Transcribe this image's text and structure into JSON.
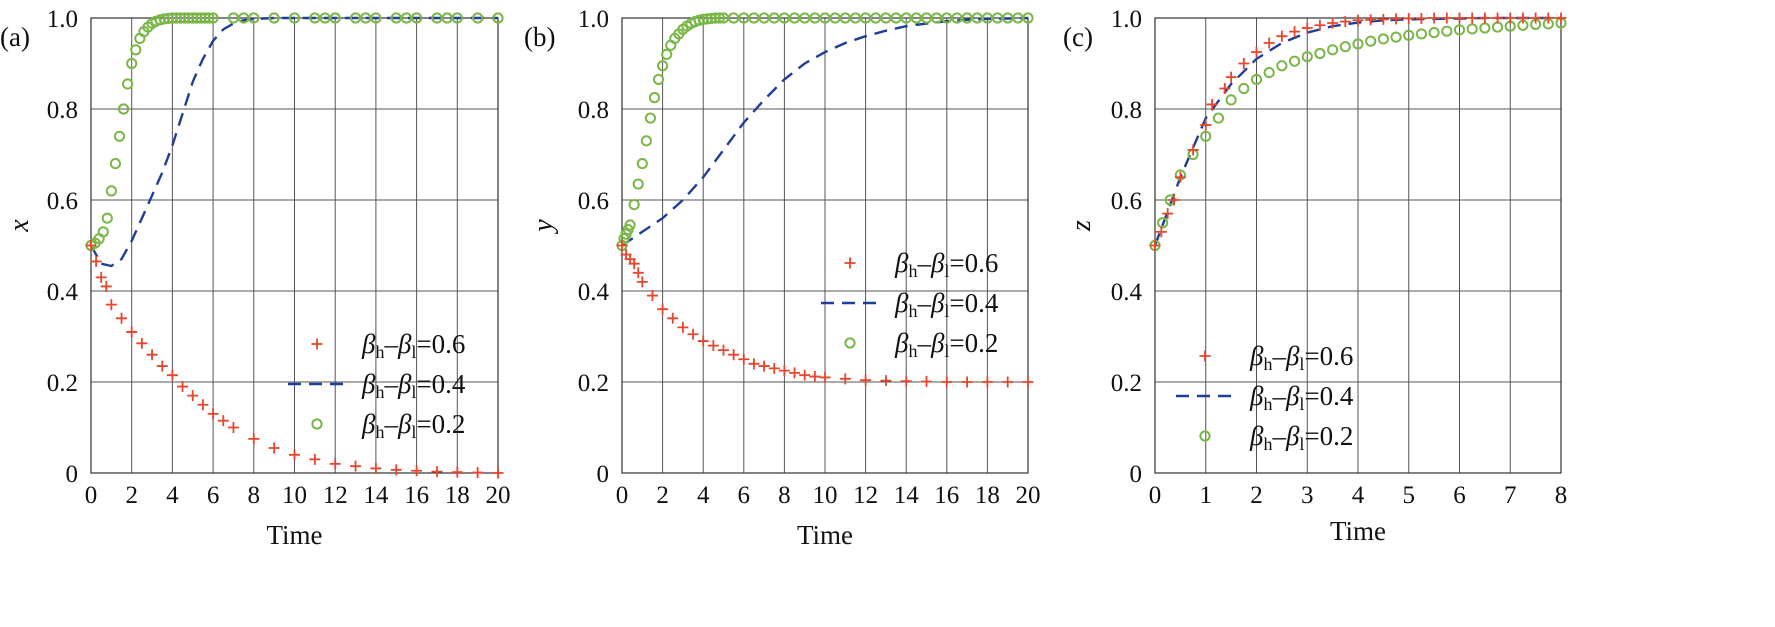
{
  "chart_data": [
    {
      "type": "line",
      "panel_label": "(a)",
      "xlabel": "Time",
      "ylabel": "x",
      "xlim": [
        0,
        20
      ],
      "ylim": [
        0,
        1
      ],
      "xticks": [
        "0",
        "2",
        "4",
        "6",
        "8",
        "10",
        "12",
        "14",
        "16",
        "18",
        "20"
      ],
      "yticks": [
        "0",
        "0.2",
        "0.4",
        "0.6",
        "0.8",
        "1.0"
      ],
      "grid": true,
      "legend_position": "bottom-right",
      "series": [
        {
          "name": "βh–βl=0.6",
          "marker": "plus",
          "color": "#e8452a",
          "x": [
            0,
            0.25,
            0.5,
            0.75,
            1,
            1.5,
            2,
            2.5,
            3,
            3.5,
            4,
            4.5,
            5,
            5.5,
            6,
            6.5,
            7,
            8,
            9,
            10,
            11,
            12,
            13,
            14,
            15,
            16,
            17,
            18,
            19,
            20
          ],
          "y": [
            0.5,
            0.465,
            0.43,
            0.41,
            0.37,
            0.34,
            0.31,
            0.285,
            0.26,
            0.235,
            0.215,
            0.19,
            0.17,
            0.15,
            0.13,
            0.115,
            0.1,
            0.075,
            0.055,
            0.04,
            0.03,
            0.02,
            0.015,
            0.01,
            0.007,
            0.005,
            0.003,
            0.002,
            0.001,
            0.0
          ]
        },
        {
          "name": "βh–βl=0.4",
          "marker": "dashed-line",
          "color": "#1f3f96",
          "x": [
            0,
            0.5,
            1,
            1.5,
            2,
            2.5,
            3,
            3.5,
            4,
            4.5,
            5,
            5.5,
            6,
            6.5,
            7,
            7.5,
            8,
            8.5,
            9,
            10,
            12,
            14,
            16,
            18,
            20
          ],
          "y": [
            0.5,
            0.46,
            0.455,
            0.47,
            0.51,
            0.56,
            0.61,
            0.66,
            0.72,
            0.79,
            0.86,
            0.91,
            0.95,
            0.975,
            0.988,
            0.995,
            0.998,
            0.999,
            1.0,
            1.0,
            1.0,
            1.0,
            1.0,
            1.0,
            1.0
          ]
        },
        {
          "name": "βh–βl=0.2",
          "marker": "circle",
          "color": "#7ab648",
          "x": [
            0,
            0.2,
            0.4,
            0.6,
            0.8,
            1,
            1.2,
            1.4,
            1.6,
            1.8,
            2,
            2.2,
            2.4,
            2.6,
            2.8,
            3,
            3.2,
            3.4,
            3.6,
            3.8,
            4,
            4.2,
            4.4,
            4.6,
            4.8,
            5,
            5.2,
            5.4,
            5.6,
            5.8,
            6,
            7,
            7.5,
            8,
            9,
            10,
            11,
            11.5,
            12,
            13,
            13.5,
            14,
            15,
            15.5,
            16,
            17,
            17.5,
            18,
            19,
            20
          ],
          "y": [
            0.5,
            0.505,
            0.515,
            0.53,
            0.56,
            0.62,
            0.68,
            0.74,
            0.8,
            0.855,
            0.9,
            0.93,
            0.955,
            0.97,
            0.98,
            0.988,
            0.993,
            0.996,
            0.998,
            0.999,
            1,
            1,
            1,
            1,
            1,
            1,
            1,
            1,
            1,
            1,
            1,
            1,
            1,
            1,
            1,
            1,
            1,
            1,
            1,
            1,
            1,
            1,
            1,
            1,
            1,
            1,
            1,
            1,
            1,
            1
          ]
        }
      ]
    },
    {
      "type": "line",
      "panel_label": "(b)",
      "xlabel": "Time",
      "ylabel": "y",
      "xlim": [
        0,
        20
      ],
      "ylim": [
        0,
        1
      ],
      "xticks": [
        "0",
        "2",
        "4",
        "6",
        "8",
        "10",
        "12",
        "14",
        "16",
        "18",
        "20"
      ],
      "yticks": [
        "0",
        "0.2",
        "0.4",
        "0.6",
        "0.8",
        "1.0"
      ],
      "grid": true,
      "legend_position": "middle-right",
      "series": [
        {
          "name": "βh–βl=0.6",
          "marker": "plus",
          "color": "#e8452a",
          "x": [
            0,
            0.2,
            0.4,
            0.6,
            0.8,
            1,
            1.5,
            2,
            2.5,
            3,
            3.5,
            4,
            4.5,
            5,
            5.5,
            6,
            6.5,
            7,
            7.5,
            8,
            8.5,
            9,
            9.5,
            10,
            11,
            12,
            13,
            14,
            15,
            16,
            17,
            18,
            19,
            20
          ],
          "y": [
            0.5,
            0.48,
            0.47,
            0.46,
            0.44,
            0.42,
            0.39,
            0.36,
            0.34,
            0.32,
            0.305,
            0.29,
            0.28,
            0.27,
            0.26,
            0.25,
            0.24,
            0.235,
            0.23,
            0.225,
            0.22,
            0.215,
            0.212,
            0.21,
            0.207,
            0.204,
            0.203,
            0.202,
            0.201,
            0.2,
            0.2,
            0.2,
            0.2,
            0.2
          ]
        },
        {
          "name": "βh–βl=0.4",
          "marker": "dashed-line",
          "color": "#1f3f96",
          "x": [
            0,
            1,
            2,
            3,
            4,
            5,
            6,
            7,
            8,
            9,
            10,
            11,
            12,
            13,
            14,
            15,
            16,
            17,
            18,
            19,
            20
          ],
          "y": [
            0.5,
            0.53,
            0.56,
            0.6,
            0.65,
            0.71,
            0.77,
            0.82,
            0.865,
            0.9,
            0.925,
            0.945,
            0.96,
            0.972,
            0.982,
            0.988,
            0.993,
            0.996,
            0.998,
            0.999,
            1.0
          ]
        },
        {
          "name": "βh–βl=0.2",
          "marker": "circle",
          "color": "#7ab648",
          "x": [
            0,
            0.1,
            0.2,
            0.3,
            0.4,
            0.6,
            0.8,
            1,
            1.2,
            1.4,
            1.6,
            1.8,
            2,
            2.2,
            2.4,
            2.6,
            2.8,
            3,
            3.2,
            3.4,
            3.6,
            3.8,
            4,
            4.2,
            4.4,
            4.6,
            4.8,
            5,
            5.5,
            6,
            6.5,
            7,
            7.5,
            8,
            8.5,
            9,
            9.5,
            10,
            10.5,
            11,
            11.5,
            12,
            12.5,
            13,
            13.5,
            14,
            14.5,
            15,
            15.5,
            16,
            16.5,
            17,
            17.5,
            18,
            18.5,
            19,
            19.5,
            20
          ],
          "y": [
            0.5,
            0.515,
            0.525,
            0.535,
            0.545,
            0.59,
            0.635,
            0.68,
            0.73,
            0.78,
            0.825,
            0.865,
            0.895,
            0.92,
            0.94,
            0.955,
            0.965,
            0.975,
            0.982,
            0.988,
            0.992,
            0.995,
            0.997,
            0.998,
            0.999,
            1,
            1,
            1,
            1,
            1,
            1,
            1,
            1,
            1,
            1,
            1,
            1,
            1,
            1,
            1,
            1,
            1,
            1,
            1,
            1,
            1,
            1,
            1,
            1,
            1,
            1,
            1,
            1,
            1,
            1,
            1,
            1,
            1
          ]
        }
      ]
    },
    {
      "type": "line",
      "panel_label": "(c)",
      "xlabel": "Time",
      "ylabel": "z",
      "xlim": [
        0,
        8
      ],
      "ylim": [
        0,
        1
      ],
      "xticks": [
        "0",
        "1",
        "2",
        "3",
        "4",
        "5",
        "6",
        "7",
        "8"
      ],
      "yticks": [
        "0",
        "0.2",
        "0.4",
        "0.6",
        "0.8",
        "1.0"
      ],
      "grid": true,
      "legend_position": "bottom-left",
      "series": [
        {
          "name": "βh–βl=0.6",
          "marker": "plus",
          "color": "#e8452a",
          "x": [
            0,
            0.125,
            0.25,
            0.375,
            0.5,
            0.75,
            1,
            1.125,
            1.375,
            1.5,
            1.75,
            2,
            2.25,
            2.5,
            2.75,
            3,
            3.25,
            3.5,
            3.75,
            4,
            4.25,
            4.5,
            4.75,
            5,
            5.25,
            5.5,
            5.75,
            6,
            6.25,
            6.5,
            6.75,
            7,
            7.25,
            7.5,
            7.75,
            8
          ],
          "y": [
            0.5,
            0.53,
            0.57,
            0.6,
            0.65,
            0.71,
            0.765,
            0.81,
            0.845,
            0.87,
            0.9,
            0.925,
            0.945,
            0.96,
            0.97,
            0.978,
            0.984,
            0.989,
            0.992,
            0.995,
            0.996,
            0.997,
            0.998,
            0.999,
            0.999,
            1,
            1,
            1,
            1,
            1,
            1,
            1,
            1,
            1,
            1,
            1
          ]
        },
        {
          "name": "βh–βl=0.4",
          "marker": "dashed-line",
          "color": "#1f3f96",
          "x": [
            0,
            0.5,
            1,
            1.5,
            2,
            2.5,
            3,
            3.5,
            4,
            4.5,
            5,
            5.5,
            6,
            6.5,
            7,
            7.5,
            8
          ],
          "y": [
            0.5,
            0.65,
            0.78,
            0.855,
            0.91,
            0.945,
            0.968,
            0.982,
            0.99,
            0.995,
            0.997,
            0.998,
            0.999,
            1,
            1,
            1,
            1
          ]
        },
        {
          "name": "βh–βl=0.2",
          "marker": "circle",
          "color": "#7ab648",
          "x": [
            0,
            0.15,
            0.3,
            0.5,
            0.75,
            1,
            1.25,
            1.5,
            1.75,
            2,
            2.25,
            2.5,
            2.75,
            3,
            3.25,
            3.5,
            3.75,
            4,
            4.25,
            4.5,
            4.75,
            5,
            5.25,
            5.5,
            5.75,
            6,
            6.25,
            6.5,
            6.75,
            7,
            7.25,
            7.5,
            7.75,
            8
          ],
          "y": [
            0.5,
            0.55,
            0.6,
            0.655,
            0.7,
            0.74,
            0.78,
            0.82,
            0.845,
            0.865,
            0.88,
            0.895,
            0.905,
            0.915,
            0.922,
            0.93,
            0.937,
            0.943,
            0.949,
            0.954,
            0.958,
            0.962,
            0.965,
            0.968,
            0.971,
            0.974,
            0.976,
            0.978,
            0.98,
            0.982,
            0.984,
            0.986,
            0.987,
            0.989
          ]
        }
      ]
    }
  ]
}
